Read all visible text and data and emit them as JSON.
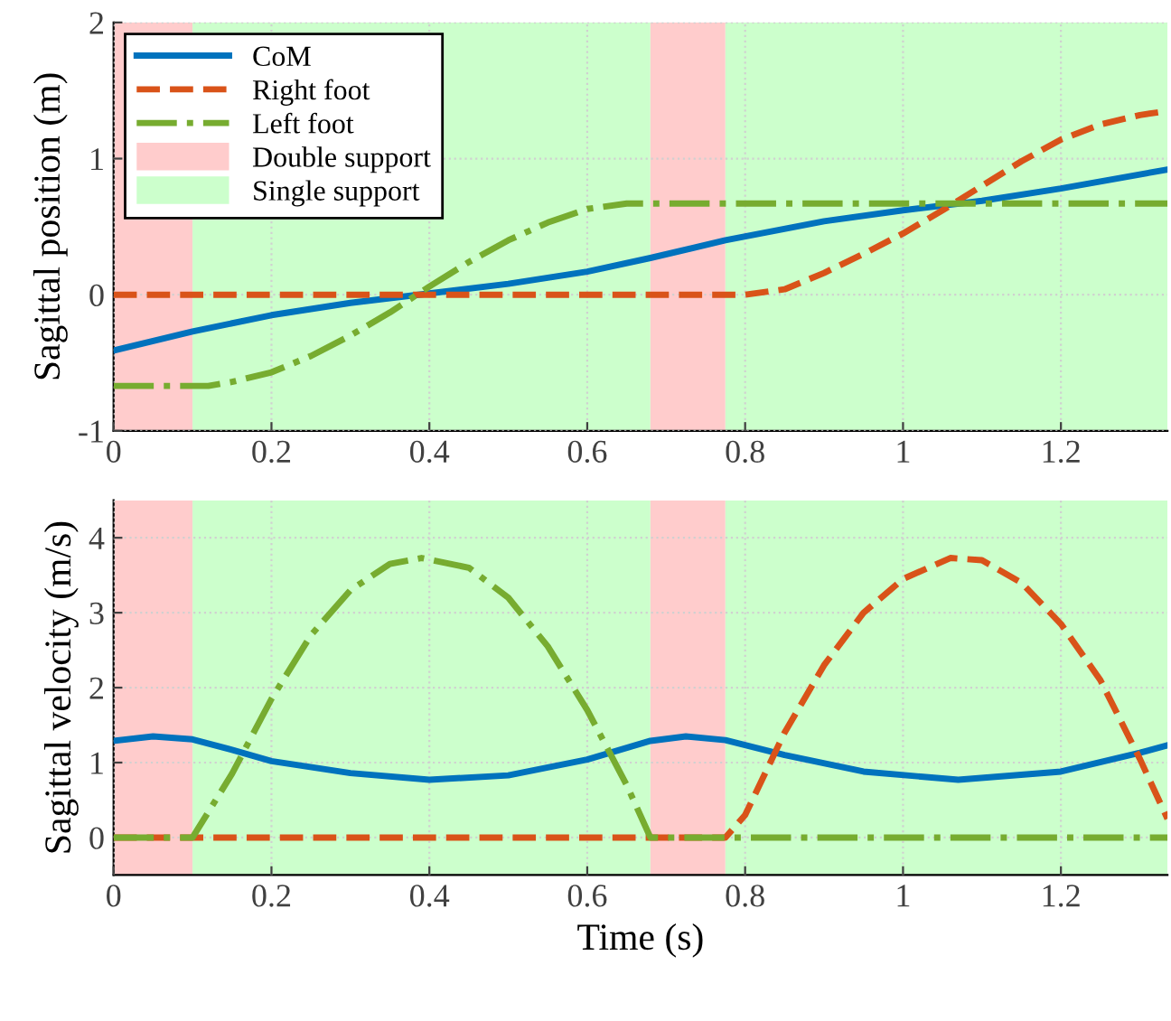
{
  "chart_data": [
    {
      "type": "line",
      "ylabel": "Sagittal position (m)",
      "xlim": [
        0,
        1.335
      ],
      "xticks": [
        0,
        0.2,
        0.4,
        0.6,
        0.8,
        1,
        1.2
      ],
      "ylim": [
        -1,
        2
      ],
      "yticks": [
        -1,
        0,
        1,
        2
      ],
      "grid": true,
      "legend": "top left",
      "bands": [
        {
          "axis": "x",
          "from": 0,
          "to": 0.1,
          "label": "Double support",
          "color": "#ffcccc"
        },
        {
          "axis": "x",
          "from": 0.1,
          "to": 0.68,
          "label": "Single support",
          "color": "#ccffcc"
        },
        {
          "axis": "x",
          "from": 0.68,
          "to": 0.775,
          "color": "#ffcccc"
        },
        {
          "axis": "x",
          "from": 0.775,
          "to": 1.335,
          "color": "#ccffcc"
        }
      ],
      "series": [
        {
          "name": "CoM",
          "color": "#0072bd",
          "line_style": "solid",
          "x": [
            0,
            0.1,
            0.2,
            0.3,
            0.4,
            0.5,
            0.6,
            0.68,
            0.775,
            0.9,
            1.0,
            1.1,
            1.2,
            1.335
          ],
          "values": [
            -0.41,
            -0.27,
            -0.15,
            -0.06,
            0.01,
            0.08,
            0.17,
            0.27,
            0.4,
            0.54,
            0.62,
            0.69,
            0.78,
            0.92
          ]
        },
        {
          "name": "Right foot",
          "color": "#d95319",
          "line_style": "dashed",
          "x": [
            0,
            0.8,
            0.85,
            0.9,
            0.95,
            1.0,
            1.05,
            1.1,
            1.15,
            1.2,
            1.25,
            1.3,
            1.335
          ],
          "values": [
            0,
            0,
            0.04,
            0.16,
            0.3,
            0.45,
            0.62,
            0.8,
            0.98,
            1.14,
            1.25,
            1.32,
            1.35
          ]
        },
        {
          "name": "Left foot",
          "color": "#77ac30",
          "line_style": "dashdot",
          "x": [
            0,
            0.12,
            0.15,
            0.2,
            0.25,
            0.3,
            0.35,
            0.4,
            0.45,
            0.5,
            0.55,
            0.6,
            0.65,
            0.68,
            1.335
          ],
          "values": [
            -0.67,
            -0.67,
            -0.64,
            -0.57,
            -0.45,
            -0.3,
            -0.13,
            0.06,
            0.24,
            0.4,
            0.53,
            0.63,
            0.67,
            0.67,
            0.67
          ]
        }
      ]
    },
    {
      "type": "line",
      "xlabel": "Time (s)",
      "ylabel": "Sagittal velocity (m/s)",
      "xlim": [
        0,
        1.335
      ],
      "xticks": [
        0,
        0.2,
        0.4,
        0.6,
        0.8,
        1,
        1.2
      ],
      "ylim": [
        -0.5,
        4.5
      ],
      "yticks": [
        0,
        1,
        2,
        3,
        4
      ],
      "grid": true,
      "bands": [
        {
          "axis": "x",
          "from": 0,
          "to": 0.1,
          "color": "#ffcccc"
        },
        {
          "axis": "x",
          "from": 0.1,
          "to": 0.68,
          "color": "#ccffcc"
        },
        {
          "axis": "x",
          "from": 0.68,
          "to": 0.775,
          "color": "#ffcccc"
        },
        {
          "axis": "x",
          "from": 0.775,
          "to": 1.335,
          "color": "#ccffcc"
        }
      ],
      "series": [
        {
          "color": "#0072bd",
          "line_style": "solid",
          "x": [
            0,
            0.05,
            0.1,
            0.15,
            0.2,
            0.3,
            0.4,
            0.5,
            0.6,
            0.68,
            0.725,
            0.775,
            0.85,
            0.95,
            1.07,
            1.2,
            1.3,
            1.335
          ],
          "values": [
            1.29,
            1.35,
            1.31,
            1.17,
            1.02,
            0.86,
            0.77,
            0.83,
            1.04,
            1.29,
            1.35,
            1.3,
            1.1,
            0.88,
            0.77,
            0.88,
            1.13,
            1.23
          ]
        },
        {
          "color": "#d95319",
          "line_style": "dashed",
          "x": [
            0,
            0.775,
            0.8,
            0.85,
            0.9,
            0.95,
            1.0,
            1.06,
            1.1,
            1.15,
            1.2,
            1.25,
            1.3,
            1.335
          ],
          "values": [
            0,
            0,
            0.3,
            1.4,
            2.3,
            3.0,
            3.45,
            3.73,
            3.7,
            3.4,
            2.85,
            2.1,
            1.05,
            0.25
          ]
        },
        {
          "color": "#77ac30",
          "line_style": "dashdot",
          "x": [
            0,
            0.1,
            0.15,
            0.2,
            0.25,
            0.3,
            0.35,
            0.39,
            0.45,
            0.5,
            0.55,
            0.6,
            0.65,
            0.68,
            1.335
          ],
          "values": [
            0,
            0,
            0.85,
            1.85,
            2.7,
            3.3,
            3.65,
            3.73,
            3.6,
            3.2,
            2.55,
            1.7,
            0.7,
            0,
            0
          ]
        }
      ]
    }
  ]
}
